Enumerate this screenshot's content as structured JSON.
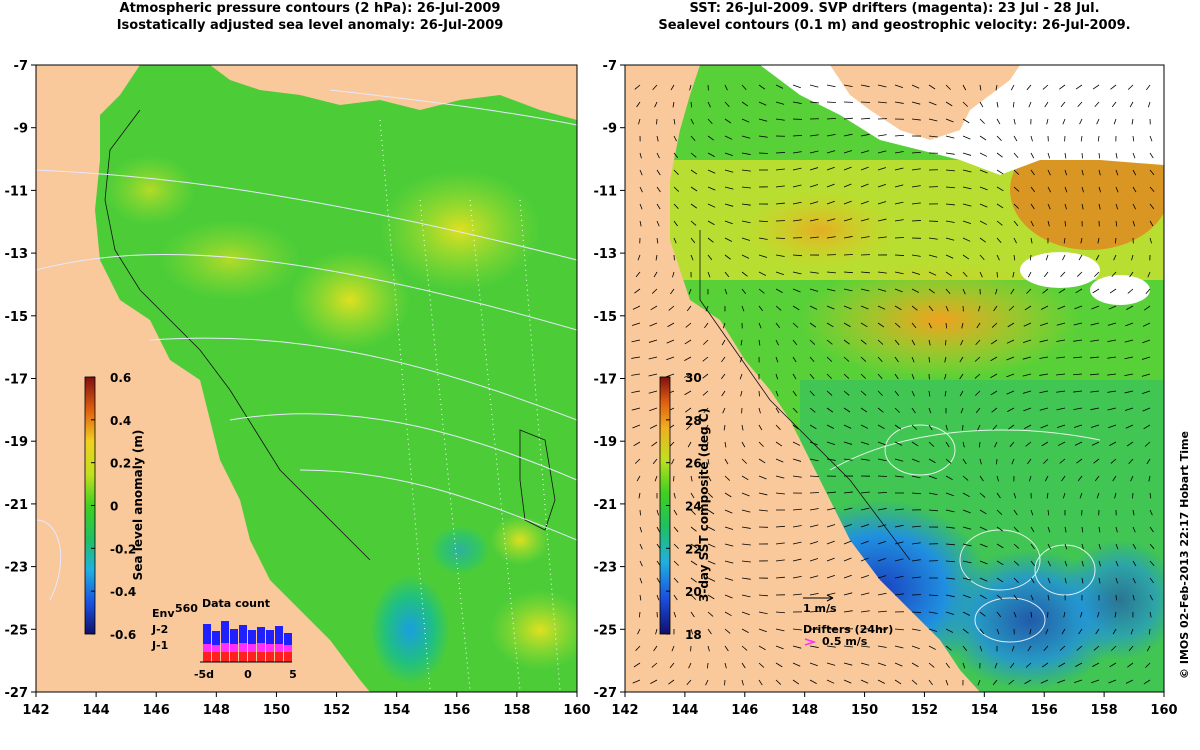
{
  "left_panel": {
    "title_line1": "Atmospheric pressure contours (2 hPa): 26-Jul-2009",
    "title_line2": "Isostatically adjusted sea level anomaly: 26-Jul-2009",
    "x_ticks": [
      "142",
      "144",
      "146",
      "148",
      "150",
      "152",
      "154",
      "156",
      "158",
      "160"
    ],
    "y_ticks": [
      "-7",
      "-9",
      "-11",
      "-13",
      "-15",
      "-17",
      "-19",
      "-21",
      "-23",
      "-25",
      "-27"
    ],
    "colorbar": {
      "label": "Sea level anomaly (m)",
      "ticks": [
        "0.6",
        "0.4",
        "0.2",
        "0",
        "-0.2",
        "-0.4",
        "-0.6"
      ],
      "range": [
        -0.6,
        0.6
      ]
    },
    "data_count": {
      "title": "Data count",
      "legend": [
        "Env",
        "J-2",
        "J-1"
      ],
      "legend_colors": [
        "#2020ff",
        "#ff30ff",
        "#ff2020"
      ],
      "top_value": "560",
      "x_ticks": [
        "-5d",
        "0",
        "5"
      ]
    }
  },
  "right_panel": {
    "title_line1": "SST: 26-Jul-2009. SVP drifters (magenta): 23 Jul - 28 Jul.",
    "title_line2": "Sealevel contours (0.1 m) and geostrophic velocity: 26-Jul-2009.",
    "x_ticks": [
      "142",
      "144",
      "146",
      "148",
      "150",
      "152",
      "154",
      "156",
      "158",
      "160"
    ],
    "y_ticks": [
      "-7",
      "-9",
      "-11",
      "-13",
      "-15",
      "-17",
      "-19",
      "-21",
      "-23",
      "-25",
      "-27"
    ],
    "colorbar": {
      "label": "3-day SST composite (deg C)",
      "ticks": [
        "30",
        "28",
        "26",
        "24",
        "22",
        "20",
        "18"
      ],
      "range": [
        18,
        30
      ]
    },
    "velocity_key": "1 m/s",
    "drifter_key_title": "Drifters (24hr)",
    "drifter_key_value": "0.5 m/s",
    "drifter_color": "#ff30ff"
  },
  "credit": "© IMOS 02-Feb-2013 22:17 Hobart Time",
  "colors": {
    "land": "#f9c89b",
    "sla_mid": "#33c93a",
    "sst_mid": "#33c93a"
  }
}
